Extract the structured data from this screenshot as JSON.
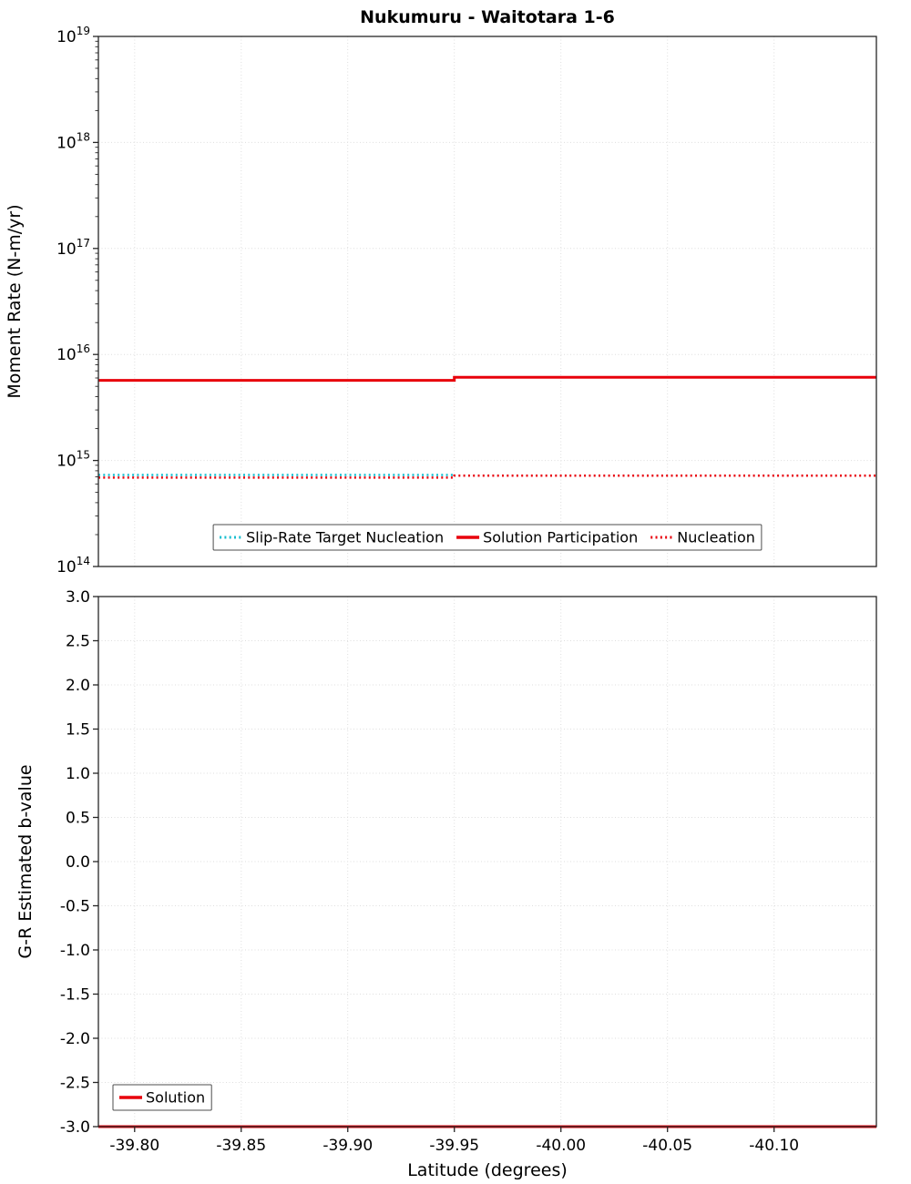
{
  "figure": {
    "title": "Nukumuru - Waitotara 1-6",
    "xlabel": "Latitude (degrees)"
  },
  "chart_data": [
    {
      "type": "line",
      "title": "Nukumuru - Waitotara 1-6",
      "xlabel": "Latitude (degrees)",
      "ylabel": "Moment Rate (N-m/yr)",
      "x_range": [
        -39.783,
        -40.148
      ],
      "x_ticks": [
        -39.8,
        -39.85,
        -39.9,
        -39.95,
        -40.0,
        -40.05,
        -40.1
      ],
      "x_tick_labels": [
        "-39.80",
        "-39.85",
        "-39.90",
        "-39.95",
        "-40.00",
        "-40.05",
        "-40.10"
      ],
      "y_scale": "log",
      "y_range_exp": [
        14,
        19
      ],
      "y_ticks_exp": [
        14,
        15,
        16,
        17,
        18,
        19
      ],
      "grid": true,
      "legend_position": "bottom-center-inside",
      "series": [
        {
          "name": "Slip-Rate Target Nucleation",
          "color": "#17becf",
          "style": "dotted",
          "width": 2.5,
          "points": [
            [
              -39.783,
              730000000000000.0
            ],
            [
              -39.95,
              730000000000000.0
            ]
          ]
        },
        {
          "name": "Solution Participation",
          "color": "#e8000b",
          "style": "solid",
          "width": 3,
          "points": [
            [
              -39.783,
              5700000000000000.0
            ],
            [
              -39.95,
              5700000000000000.0
            ],
            [
              -39.95,
              6100000000000000.0
            ],
            [
              -40.148,
              6100000000000000.0
            ]
          ]
        },
        {
          "name": "Nucleation",
          "color": "#e8000b",
          "style": "dotted",
          "width": 2.5,
          "points": [
            [
              -39.783,
              690000000000000.0
            ],
            [
              -39.95,
              690000000000000.0
            ],
            [
              -39.95,
              720000000000000.0
            ],
            [
              -40.148,
              720000000000000.0
            ]
          ]
        }
      ]
    },
    {
      "type": "line",
      "title": "",
      "xlabel": "Latitude (degrees)",
      "ylabel": "G-R Estimated b-value",
      "x_range": [
        -39.783,
        -40.148
      ],
      "x_ticks": [
        -39.8,
        -39.85,
        -39.9,
        -39.95,
        -40.0,
        -40.05,
        -40.1
      ],
      "x_tick_labels": [
        "-39.80",
        "-39.85",
        "-39.90",
        "-39.95",
        "-40.00",
        "-40.05",
        "-40.10"
      ],
      "y_scale": "linear",
      "y_range": [
        -3.0,
        3.0
      ],
      "y_ticks": [
        3.0,
        2.5,
        2.0,
        1.5,
        1.0,
        0.5,
        0.0,
        -0.5,
        -1.0,
        -1.5,
        -2.0,
        -2.5,
        -3.0
      ],
      "y_tick_labels": [
        "3.0",
        "2.5",
        "2.0",
        "1.5",
        "1.0",
        "0.5",
        "0.0",
        "-0.5",
        "-1.0",
        "-1.5",
        "-2.0",
        "-2.5",
        "-3.0"
      ],
      "grid": true,
      "legend_position": "bottom-left-inside",
      "series": [
        {
          "name": "Solution",
          "color": "#e8000b",
          "style": "solid",
          "width": 3,
          "points": [
            [
              -39.783,
              -3.0
            ],
            [
              -40.148,
              -3.0
            ]
          ]
        }
      ]
    }
  ],
  "colors": {
    "axis": "#262626",
    "grid": "#dedede",
    "legend_border": "#4d4d4d",
    "solution_red": "#e8000b",
    "target_teal": "#17becf"
  }
}
